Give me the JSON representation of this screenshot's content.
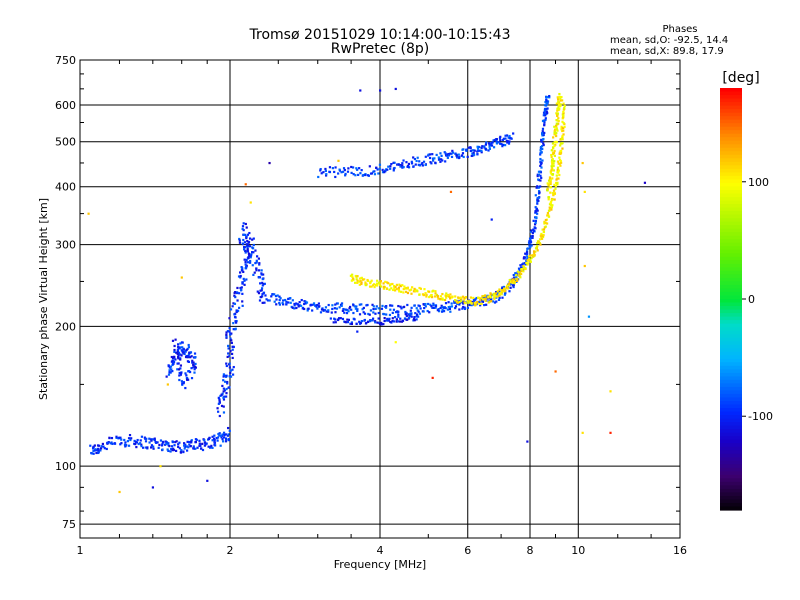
{
  "chart_data": {
    "type": "scatter",
    "title": "Tromsø 20151029 10:14:00-10:15:43",
    "subtitle": "RwPretec (8p)",
    "xlabel": "Frequency [MHz]",
    "ylabel": "Stationary phase Virtual Height [km]",
    "x_scale": "log",
    "y_scale": "log",
    "xlim": [
      1,
      16
    ],
    "ylim": [
      70,
      750
    ],
    "x_ticks": [
      1,
      2,
      4,
      6,
      8,
      10,
      16
    ],
    "x_tick_labels": [
      "1",
      "2",
      "4",
      "6",
      "8",
      "10",
      "16"
    ],
    "y_ticks": [
      75,
      100,
      200,
      300,
      400,
      500,
      600,
      750
    ],
    "y_tick_labels": [
      "75",
      "100",
      "200",
      "300",
      "400",
      "500",
      "600",
      "750"
    ],
    "grid": true,
    "stats": {
      "heading": "Phases",
      "line1_label": "mean, sd,O:",
      "line1_value": "-92.5, 14.4",
      "line2_label": "mean, sd,X:",
      "line2_value": "89.8, 17.9"
    },
    "colorbar": {
      "label": "[deg]",
      "range": [
        -180,
        180
      ],
      "ticks": [
        100,
        0,
        -100
      ],
      "tick_labels": [
        "100",
        "0",
        "-100"
      ]
    },
    "traces": [
      {
        "name": "",
        "phase": -95,
        "points": [
          [
            1.05,
            108
          ],
          [
            1.1,
            110
          ],
          [
            1.2,
            114
          ],
          [
            1.3,
            113
          ],
          [
            1.4,
            112
          ],
          [
            1.5,
            111
          ],
          [
            1.6,
            110
          ],
          [
            1.7,
            111
          ],
          [
            1.8,
            112
          ],
          [
            1.9,
            114
          ],
          [
            2.0,
            118
          ]
        ],
        "spread": 0.03
      },
      {
        "name": "",
        "phase": -95,
        "points": [
          [
            1.5,
            160
          ],
          [
            1.55,
            170
          ],
          [
            1.6,
            180
          ],
          [
            1.65,
            175
          ],
          [
            1.7,
            165
          ],
          [
            1.6,
            150
          ],
          [
            1.55,
            190
          ]
        ],
        "spread": 0.04
      },
      {
        "name": "",
        "phase": -95,
        "points": [
          [
            1.9,
            130
          ],
          [
            1.95,
            145
          ],
          [
            2.0,
            165
          ],
          [
            2.0,
            190
          ],
          [
            2.05,
            215
          ],
          [
            2.1,
            240
          ],
          [
            2.15,
            270
          ],
          [
            2.2,
            300
          ],
          [
            2.1,
            320
          ],
          [
            2.25,
            280
          ],
          [
            2.3,
            250
          ],
          [
            2.35,
            230
          ]
        ],
        "spread": 0.06
      },
      {
        "name": "",
        "phase": -90,
        "points": [
          [
            2.4,
            230
          ],
          [
            2.6,
            226
          ],
          [
            2.8,
            222
          ],
          [
            3.0,
            220
          ],
          [
            3.3,
            219
          ],
          [
            3.6,
            218
          ],
          [
            4.0,
            217
          ],
          [
            4.4,
            217
          ],
          [
            4.8,
            218
          ],
          [
            5.2,
            219
          ],
          [
            5.6,
            221
          ],
          [
            6.0,
            223
          ],
          [
            6.4,
            226
          ],
          [
            6.8,
            231
          ],
          [
            7.2,
            240
          ],
          [
            7.5,
            255
          ],
          [
            7.8,
            275
          ],
          [
            8.0,
            300
          ],
          [
            8.2,
            340
          ],
          [
            8.3,
            390
          ],
          [
            8.4,
            450
          ],
          [
            8.5,
            520
          ],
          [
            8.6,
            580
          ],
          [
            8.7,
            630
          ]
        ],
        "spread": 0.025
      },
      {
        "name": "",
        "phase": -100,
        "points": [
          [
            3.2,
            207
          ],
          [
            3.6,
            205
          ],
          [
            4.0,
            205
          ],
          [
            4.4,
            207
          ],
          [
            4.8,
            210
          ]
        ],
        "spread": 0.015
      },
      {
        "name": "",
        "phase": -90,
        "points": [
          [
            3.0,
            430
          ],
          [
            3.4,
            430
          ],
          [
            3.8,
            433
          ],
          [
            4.2,
            440
          ],
          [
            4.6,
            450
          ],
          [
            5.0,
            458
          ],
          [
            5.4,
            465
          ],
          [
            5.8,
            472
          ],
          [
            6.2,
            480
          ],
          [
            6.6,
            490
          ],
          [
            7.0,
            500
          ],
          [
            7.4,
            510
          ]
        ],
        "spread": 0.025
      },
      {
        "name": "",
        "phase": 105,
        "points": [
          [
            3.5,
            255
          ],
          [
            3.7,
            250
          ],
          [
            4.0,
            246
          ],
          [
            4.3,
            243
          ],
          [
            4.6,
            240
          ],
          [
            5.0,
            236
          ],
          [
            5.4,
            232
          ],
          [
            5.8,
            228
          ],
          [
            6.2,
            226
          ],
          [
            6.6,
            230
          ],
          [
            7.0,
            238
          ],
          [
            7.4,
            250
          ],
          [
            7.8,
            268
          ],
          [
            8.2,
            290
          ],
          [
            8.5,
            320
          ],
          [
            8.8,
            360
          ],
          [
            9.0,
            400
          ],
          [
            9.2,
            460
          ],
          [
            9.3,
            530
          ],
          [
            9.4,
            600
          ]
        ],
        "spread": 0.02
      },
      {
        "name": "",
        "phase": 100,
        "points": [
          [
            8.7,
            380
          ],
          [
            8.8,
            420
          ],
          [
            8.9,
            470
          ],
          [
            9.0,
            520
          ],
          [
            9.1,
            580
          ],
          [
            9.2,
            630
          ]
        ],
        "spread": 0.03
      }
    ],
    "scattered_points": [
      {
        "x": 3.65,
        "y": 645,
        "phase": -110
      },
      {
        "x": 4.0,
        "y": 645,
        "phase": -110
      },
      {
        "x": 4.3,
        "y": 650,
        "phase": -110
      },
      {
        "x": 1.04,
        "y": 350,
        "phase": 120
      },
      {
        "x": 1.6,
        "y": 255,
        "phase": 120
      },
      {
        "x": 2.4,
        "y": 450,
        "phase": -130
      },
      {
        "x": 2.2,
        "y": 370,
        "phase": 110
      },
      {
        "x": 2.15,
        "y": 405,
        "phase": 150
      },
      {
        "x": 3.3,
        "y": 455,
        "phase": 120
      },
      {
        "x": 5.55,
        "y": 390,
        "phase": 150
      },
      {
        "x": 6.7,
        "y": 340,
        "phase": -100
      },
      {
        "x": 9.0,
        "y": 160,
        "phase": 150
      },
      {
        "x": 10.2,
        "y": 450,
        "phase": 120
      },
      {
        "x": 10.3,
        "y": 390,
        "phase": 110
      },
      {
        "x": 10.5,
        "y": 210,
        "phase": -60
      },
      {
        "x": 10.3,
        "y": 270,
        "phase": 120
      },
      {
        "x": 11.6,
        "y": 145,
        "phase": 110
      },
      {
        "x": 11.6,
        "y": 118,
        "phase": 170
      },
      {
        "x": 13.6,
        "y": 408,
        "phase": -120
      },
      {
        "x": 1.2,
        "y": 88,
        "phase": 120
      },
      {
        "x": 1.4,
        "y": 90,
        "phase": -110
      },
      {
        "x": 1.8,
        "y": 93,
        "phase": -110
      },
      {
        "x": 7.9,
        "y": 113,
        "phase": -110
      },
      {
        "x": 5.1,
        "y": 155,
        "phase": 170
      },
      {
        "x": 4.3,
        "y": 185,
        "phase": 100
      },
      {
        "x": 3.6,
        "y": 195,
        "phase": -100
      },
      {
        "x": 10.2,
        "y": 118,
        "phase": 110
      },
      {
        "x": 1.5,
        "y": 150,
        "phase": 120
      },
      {
        "x": 1.45,
        "y": 100,
        "phase": 110
      }
    ]
  }
}
